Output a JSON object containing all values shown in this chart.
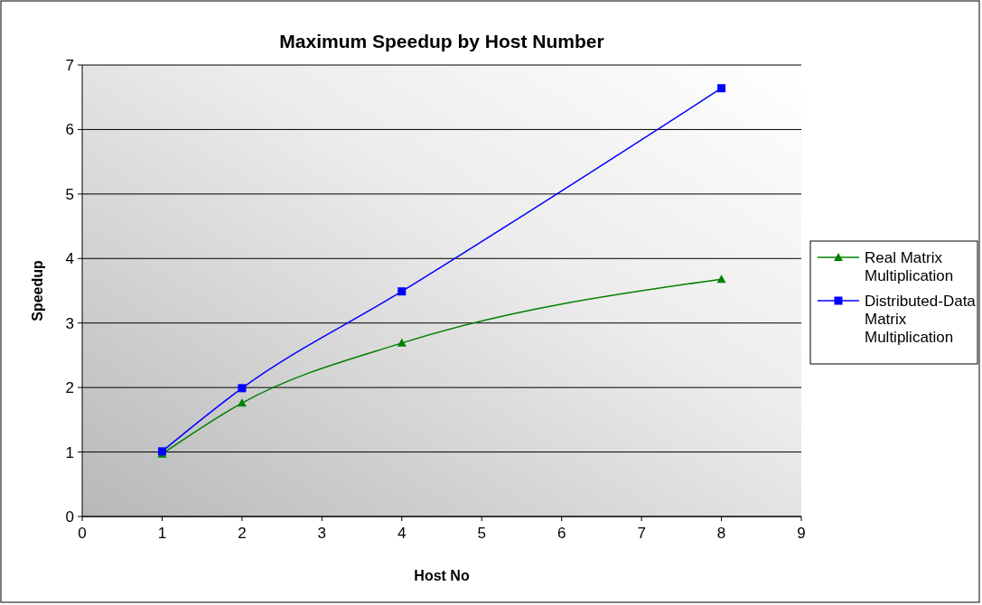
{
  "chart_data": {
    "type": "line",
    "title": "Maximum Speedup by Host Number",
    "xlabel": "Host No",
    "ylabel": "Speedup",
    "x": [
      1,
      2,
      4,
      8
    ],
    "series": [
      {
        "name": "Real Matrix Multiplication",
        "color": "#008000",
        "marker": "triangle",
        "values": [
          0.97,
          1.76,
          2.69,
          3.68
        ]
      },
      {
        "name": "Distributed-Data Matrix Multiplication",
        "color": "#0000ff",
        "marker": "square",
        "values": [
          1.01,
          1.99,
          3.49,
          6.64
        ]
      }
    ],
    "xlim": [
      0,
      9
    ],
    "xticks": [
      0,
      1,
      2,
      3,
      4,
      5,
      6,
      7,
      8,
      9
    ],
    "ylim": [
      0,
      7
    ],
    "yticks": [
      0,
      1,
      2,
      3,
      4,
      5,
      6,
      7
    ],
    "grid": "y",
    "legend": "right",
    "line_style": "solid"
  }
}
